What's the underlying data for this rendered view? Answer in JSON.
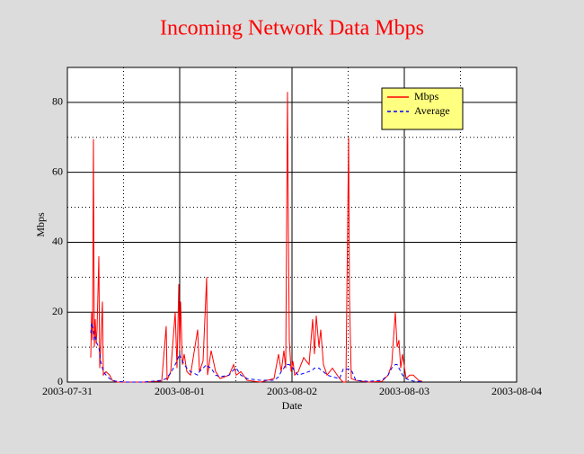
{
  "chart_data": {
    "type": "line",
    "title": "Incoming Network Data Mbps",
    "xlabel": "Date",
    "ylabel": "Mbps",
    "x": [
      0.208,
      0.216,
      0.224,
      0.232,
      0.24,
      0.248,
      0.256,
      0.264,
      0.28,
      0.288,
      0.296,
      0.312,
      0.32,
      0.344,
      0.376,
      0.4,
      0.44,
      0.52,
      0.68,
      0.84,
      0.88,
      0.888,
      0.92,
      0.96,
      0.976,
      0.992,
      1.0,
      1.008,
      1.024,
      1.04,
      1.064,
      1.096,
      1.16,
      1.176,
      1.208,
      1.24,
      1.248,
      1.28,
      1.32,
      1.36,
      1.44,
      1.48,
      1.504,
      1.544,
      1.6,
      1.72,
      1.84,
      1.88,
      1.904,
      1.928,
      1.944,
      1.96,
      1.968,
      1.976,
      1.992,
      2.008,
      2.024,
      2.056,
      2.104,
      2.152,
      2.184,
      2.2,
      2.216,
      2.24,
      2.256,
      2.28,
      2.312,
      2.36,
      2.424,
      2.456,
      2.48,
      2.504,
      2.512,
      2.528,
      2.568,
      2.68,
      2.8,
      2.856,
      2.888,
      2.92,
      2.936,
      2.952,
      2.968,
      2.984,
      3.016,
      3.048,
      3.08,
      3.128,
      3.16
    ],
    "series": [
      {
        "name": "Mbps",
        "color": "#ff0000",
        "dash": false,
        "values": [
          7,
          20,
          12,
          69.5,
          10,
          18,
          11,
          15,
          36,
          4,
          9,
          23,
          2,
          3,
          2,
          0.5,
          0,
          0,
          0,
          0.3,
          16,
          0.5,
          3,
          20,
          4,
          28,
          9,
          23,
          5,
          8,
          3,
          2,
          15,
          3,
          6,
          30,
          2,
          9,
          3,
          1,
          2,
          5,
          2,
          3,
          0.5,
          0,
          1,
          8,
          3,
          9,
          4,
          83,
          42,
          12,
          3,
          6,
          2,
          3,
          7,
          5,
          18,
          8,
          19,
          10,
          15,
          5,
          2,
          4,
          1,
          0,
          0,
          70,
          24,
          1,
          0.5,
          0,
          0.2,
          2,
          5,
          20,
          10,
          12,
          4,
          8,
          1,
          2,
          2,
          0.5,
          0.2
        ]
      },
      {
        "name": "Average",
        "color": "#0000ff",
        "dash": true,
        "values": [
          14,
          17,
          16,
          15,
          12,
          13,
          12,
          11,
          10,
          8,
          6,
          4,
          3,
          2,
          1,
          0.5,
          0.2,
          0,
          0,
          0.5,
          1,
          1.5,
          2.5,
          5,
          6,
          7.5,
          8,
          7,
          6,
          5,
          4,
          3,
          2,
          3,
          4,
          5,
          4.5,
          4,
          2,
          1.5,
          2,
          3.5,
          4,
          2,
          1,
          0.5,
          0.5,
          1.5,
          3,
          4,
          5,
          5,
          5,
          5,
          4.5,
          4,
          3,
          2,
          2.5,
          3,
          3.5,
          4,
          4,
          4,
          3.5,
          3,
          2,
          1.5,
          1,
          3.7,
          3.7,
          3.7,
          3.7,
          3.5,
          0.5,
          0.2,
          0.5,
          2,
          4,
          5,
          5,
          4,
          3,
          2,
          1,
          0.5,
          0.3,
          0.2,
          0.1
        ]
      }
    ],
    "xlim": [
      0,
      4
    ],
    "xticks": [
      {
        "value": 0,
        "label": "2003-07-31"
      },
      {
        "value": 1,
        "label": "2003-08-01"
      },
      {
        "value": 2,
        "label": "2003-08-02"
      },
      {
        "value": 3,
        "label": "2003-08-03"
      },
      {
        "value": 4,
        "label": "2003-08-04"
      }
    ],
    "ylim": [
      0,
      90
    ],
    "yticks": [
      0,
      20,
      40,
      60,
      80
    ],
    "grid": true,
    "legend": "upper right"
  }
}
